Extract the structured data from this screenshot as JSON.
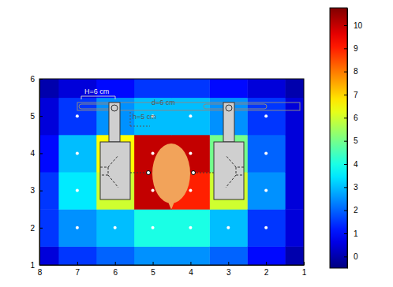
{
  "chart_data": {
    "type": "heatmap",
    "x": [
      1,
      2,
      3,
      4,
      5,
      6,
      7,
      8
    ],
    "y": [
      1,
      2,
      3,
      4,
      5,
      6
    ],
    "z": [
      [
        0,
        1,
        2,
        2.5,
        2.5,
        2,
        1.5,
        0.5
      ],
      [
        0.5,
        1.5,
        3,
        4,
        4,
        3,
        2.5,
        1.5
      ],
      [
        0.5,
        2.5,
        6,
        9,
        10,
        6,
        3.5,
        1.5
      ],
      [
        0.5,
        2,
        5,
        10,
        10,
        6.5,
        3,
        1
      ],
      [
        0.5,
        1.5,
        2.5,
        3,
        3,
        2.5,
        1.5,
        0.5
      ],
      [
        0,
        0.5,
        1,
        1.5,
        1.5,
        1,
        0.5,
        0
      ]
    ],
    "xlim": [
      8,
      1
    ],
    "xticks": [
      8,
      7,
      6,
      5,
      4,
      3,
      2,
      1
    ],
    "ylim": [
      1,
      6
    ],
    "yticks": [
      1,
      2,
      3,
      4,
      5,
      6
    ],
    "colorbar": {
      "range": [
        -0.5,
        10.75
      ],
      "ticks": [
        0,
        1,
        2,
        3,
        4,
        5,
        6,
        7,
        8,
        9,
        10
      ]
    },
    "annotations": [
      "H=6 cm",
      "d=6 cm",
      "h=5 cm"
    ]
  }
}
